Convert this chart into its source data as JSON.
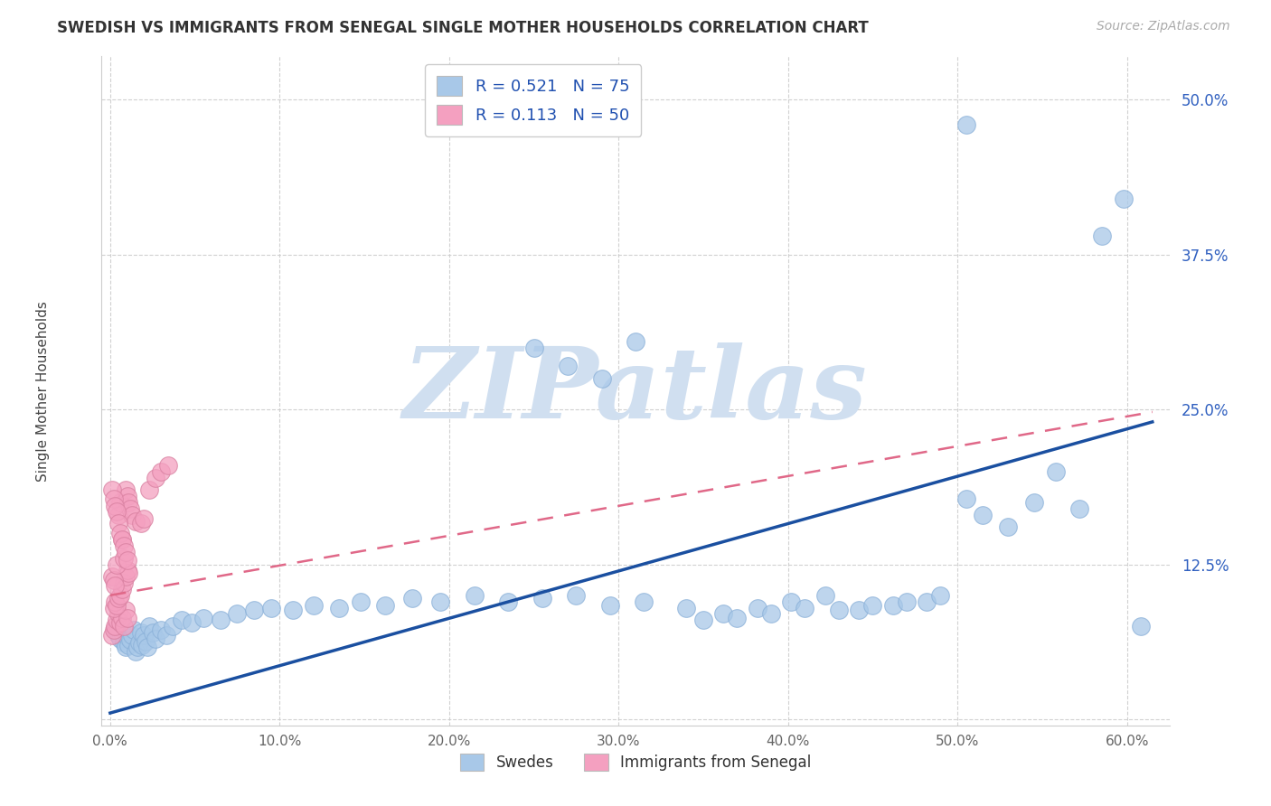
{
  "title": "SWEDISH VS IMMIGRANTS FROM SENEGAL SINGLE MOTHER HOUSEHOLDS CORRELATION CHART",
  "source": "Source: ZipAtlas.com",
  "ylabel": "Single Mother Households",
  "label_swedes": "Swedes",
  "label_senegal": "Immigrants from Senegal",
  "R_swedes": 0.521,
  "N_swedes": 75,
  "R_senegal": 0.113,
  "N_senegal": 50,
  "color_swedes": "#A8C8E8",
  "color_senegal": "#F4A0C0",
  "color_line_swedes": "#1A4FA0",
  "color_line_senegal": "#E06888",
  "watermark": "ZIPatlas",
  "watermark_color": "#D0DFF0",
  "xlim": [
    -0.005,
    0.625
  ],
  "ylim": [
    -0.005,
    0.535
  ],
  "xticks": [
    0.0,
    0.1,
    0.2,
    0.3,
    0.4,
    0.5,
    0.6
  ],
  "yticks": [
    0.0,
    0.125,
    0.25,
    0.375,
    0.5
  ],
  "ytick_labels": [
    "",
    "12.5%",
    "25.0%",
    "37.5%",
    "50.0%"
  ],
  "xtick_labels": [
    "0.0%",
    "10.0%",
    "20.0%",
    "30.0%",
    "40.0%",
    "50.0%",
    "60.0%"
  ],
  "swedes_x": [
    0.003,
    0.005,
    0.006,
    0.007,
    0.008,
    0.009,
    0.01,
    0.011,
    0.012,
    0.013,
    0.014,
    0.015,
    0.016,
    0.017,
    0.018,
    0.019,
    0.02,
    0.021,
    0.022,
    0.023,
    0.025,
    0.027,
    0.03,
    0.033,
    0.037,
    0.042,
    0.048,
    0.055,
    0.065,
    0.075,
    0.085,
    0.095,
    0.108,
    0.12,
    0.135,
    0.148,
    0.162,
    0.178,
    0.195,
    0.215,
    0.235,
    0.255,
    0.275,
    0.295,
    0.315,
    0.34,
    0.362,
    0.382,
    0.402,
    0.422,
    0.442,
    0.462,
    0.482,
    0.35,
    0.37,
    0.39,
    0.41,
    0.43,
    0.45,
    0.47,
    0.49,
    0.505,
    0.515,
    0.53,
    0.545,
    0.558,
    0.572,
    0.585,
    0.598,
    0.608,
    0.25,
    0.27,
    0.29,
    0.31,
    0.505
  ],
  "swedes_y": [
    0.072,
    0.068,
    0.065,
    0.07,
    0.062,
    0.058,
    0.066,
    0.06,
    0.064,
    0.068,
    0.072,
    0.055,
    0.058,
    0.062,
    0.07,
    0.06,
    0.068,
    0.063,
    0.058,
    0.075,
    0.07,
    0.065,
    0.072,
    0.068,
    0.075,
    0.08,
    0.078,
    0.082,
    0.08,
    0.085,
    0.088,
    0.09,
    0.088,
    0.092,
    0.09,
    0.095,
    0.092,
    0.098,
    0.095,
    0.1,
    0.095,
    0.098,
    0.1,
    0.092,
    0.095,
    0.09,
    0.085,
    0.09,
    0.095,
    0.1,
    0.088,
    0.092,
    0.095,
    0.08,
    0.082,
    0.085,
    0.09,
    0.088,
    0.092,
    0.095,
    0.1,
    0.178,
    0.165,
    0.155,
    0.175,
    0.2,
    0.17,
    0.39,
    0.42,
    0.075,
    0.3,
    0.285,
    0.275,
    0.305,
    0.48
  ],
  "swedes_line_x": [
    0.0,
    0.615
  ],
  "swedes_line_y": [
    0.005,
    0.24
  ],
  "senegal_x": [
    0.001,
    0.002,
    0.003,
    0.004,
    0.005,
    0.006,
    0.007,
    0.008,
    0.009,
    0.01,
    0.002,
    0.003,
    0.004,
    0.005,
    0.006,
    0.007,
    0.008,
    0.009,
    0.01,
    0.011,
    0.001,
    0.002,
    0.003,
    0.004,
    0.005,
    0.006,
    0.007,
    0.008,
    0.009,
    0.01,
    0.011,
    0.012,
    0.013,
    0.015,
    0.018,
    0.02,
    0.023,
    0.027,
    0.03,
    0.034,
    0.001,
    0.002,
    0.003,
    0.004,
    0.005,
    0.006,
    0.007,
    0.008,
    0.009,
    0.01
  ],
  "senegal_y": [
    0.068,
    0.072,
    0.075,
    0.08,
    0.085,
    0.078,
    0.082,
    0.075,
    0.088,
    0.082,
    0.09,
    0.095,
    0.092,
    0.098,
    0.1,
    0.105,
    0.11,
    0.115,
    0.12,
    0.118,
    0.115,
    0.112,
    0.108,
    0.125,
    0.165,
    0.175,
    0.145,
    0.13,
    0.185,
    0.18,
    0.175,
    0.17,
    0.165,
    0.16,
    0.158,
    0.162,
    0.185,
    0.195,
    0.2,
    0.205,
    0.185,
    0.178,
    0.172,
    0.168,
    0.158,
    0.15,
    0.145,
    0.14,
    0.135,
    0.128
  ],
  "senegal_line_x": [
    0.0,
    0.615
  ],
  "senegal_line_y": [
    0.1,
    0.248
  ]
}
